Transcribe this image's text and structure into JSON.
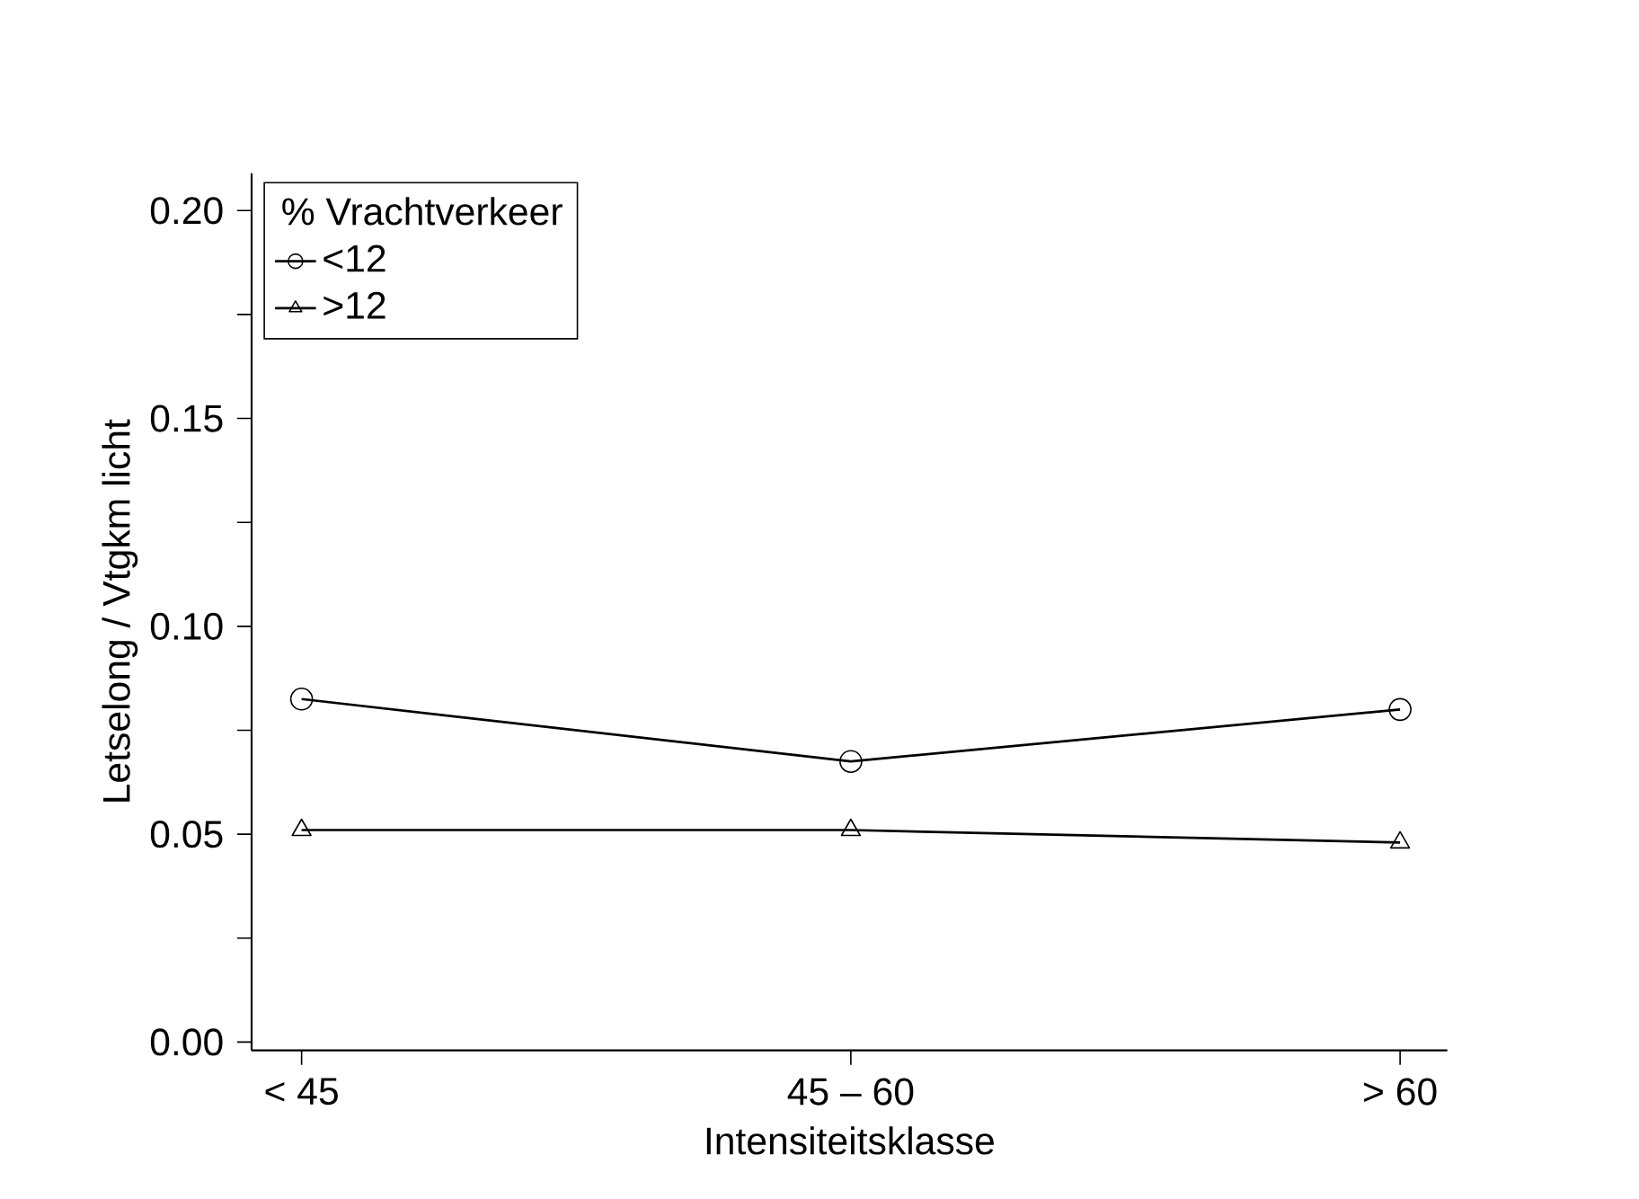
{
  "chart_data": {
    "type": "line",
    "xlabel": "Intensiteitsklasse",
    "ylabel": "Letselong / Vtgkm licht",
    "legend_title": "% Vrachtverkeer",
    "categories": [
      "< 45",
      "45 – 60",
      "> 60"
    ],
    "series": [
      {
        "name": "<12",
        "color": "#000000",
        "marker": "circle",
        "values": [
          0.0825,
          0.0675,
          0.08
        ]
      },
      {
        "name": ">12",
        "color": "#000000",
        "marker": "triangle",
        "values": [
          0.051,
          0.051,
          0.048
        ]
      }
    ],
    "ylim": [
      -0.002,
      0.209
    ],
    "yticks": [
      {
        "value": 0,
        "label": "0.00"
      },
      {
        "value": 0.025,
        "label": null
      },
      {
        "value": 0.05,
        "label": "0.05"
      },
      {
        "value": 0.075,
        "label": null
      },
      {
        "value": 0.1,
        "label": "0.10"
      },
      {
        "value": 0.125,
        "label": null
      },
      {
        "value": 0.15,
        "label": "0.15"
      },
      {
        "value": 0.175,
        "label": null
      },
      {
        "value": 0.2,
        "label": "0.20"
      }
    ],
    "legend": "top left",
    "grid": false,
    "line_style": "solid"
  }
}
